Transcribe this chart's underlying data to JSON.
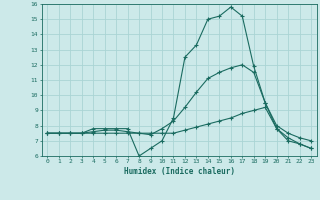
{
  "xlabel": "Humidex (Indice chaleur)",
  "xlim": [
    -0.5,
    23.5
  ],
  "ylim": [
    6,
    16
  ],
  "yticks": [
    6,
    7,
    8,
    9,
    10,
    11,
    12,
    13,
    14,
    15,
    16
  ],
  "xticks": [
    0,
    1,
    2,
    3,
    4,
    5,
    6,
    7,
    8,
    9,
    10,
    11,
    12,
    13,
    14,
    15,
    16,
    17,
    18,
    19,
    20,
    21,
    22,
    23
  ],
  "background_color": "#cce9e9",
  "grid_color": "#aad4d4",
  "line_color": "#1a6b60",
  "series": [
    {
      "x": [
        0,
        1,
        2,
        3,
        4,
        5,
        6,
        7,
        8,
        9,
        10,
        11,
        12,
        13,
        14,
        15,
        16,
        17,
        18,
        19,
        20,
        21,
        22,
        23
      ],
      "y": [
        7.5,
        7.5,
        7.5,
        7.5,
        7.8,
        7.8,
        7.8,
        7.8,
        6.0,
        6.5,
        7.0,
        8.5,
        12.5,
        13.3,
        15.0,
        15.2,
        15.8,
        15.2,
        11.9,
        9.5,
        7.8,
        7.0,
        6.8,
        6.5
      ]
    },
    {
      "x": [
        0,
        1,
        2,
        3,
        4,
        5,
        6,
        7,
        8,
        9,
        10,
        11,
        12,
        13,
        14,
        15,
        16,
        17,
        18,
        19,
        20,
        21,
        22,
        23
      ],
      "y": [
        7.5,
        7.5,
        7.5,
        7.5,
        7.6,
        7.7,
        7.7,
        7.6,
        7.5,
        7.4,
        7.8,
        8.3,
        9.2,
        10.2,
        11.1,
        11.5,
        11.8,
        12.0,
        11.5,
        9.5,
        8.0,
        7.5,
        7.2,
        7.0
      ]
    },
    {
      "x": [
        0,
        1,
        2,
        3,
        4,
        5,
        6,
        7,
        8,
        9,
        10,
        11,
        12,
        13,
        14,
        15,
        16,
        17,
        18,
        19,
        20,
        21,
        22,
        23
      ],
      "y": [
        7.5,
        7.5,
        7.5,
        7.5,
        7.5,
        7.5,
        7.5,
        7.5,
        7.5,
        7.5,
        7.5,
        7.5,
        7.7,
        7.9,
        8.1,
        8.3,
        8.5,
        8.8,
        9.0,
        9.2,
        7.8,
        7.2,
        6.8,
        6.5
      ]
    }
  ]
}
